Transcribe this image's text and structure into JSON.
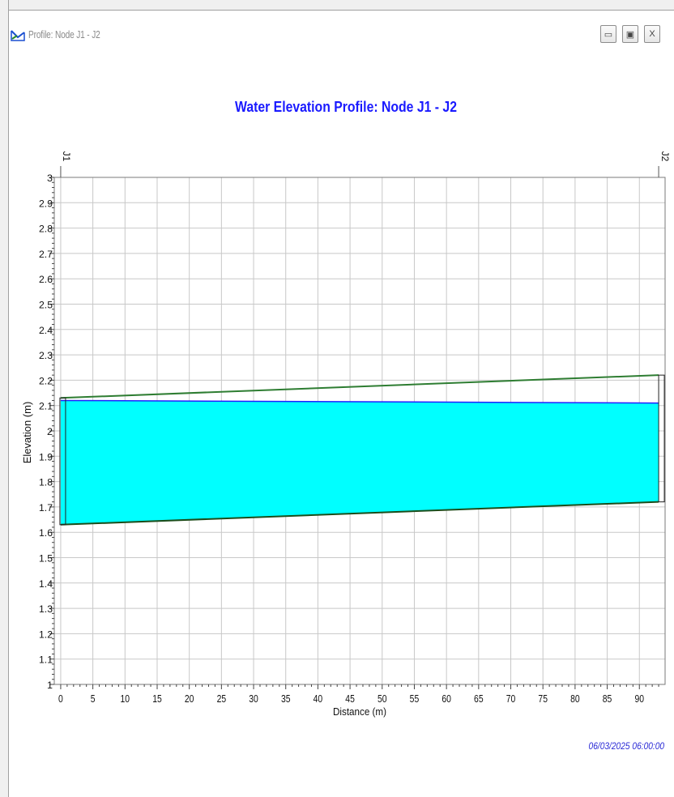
{
  "window": {
    "title": "Profile: Node J1 - J2",
    "buttons": {
      "minimize": "▭",
      "restore": "▣",
      "close": "X"
    }
  },
  "timestamp": "06/03/2025 06:00:00",
  "chart_data": {
    "type": "area",
    "title": "Water Elevation Profile: Node J1 - J2",
    "xlabel": "Distance (m)",
    "ylabel": "Elevation (m)",
    "xlim": [
      -1,
      94
    ],
    "ylim": [
      1,
      3
    ],
    "x_ticks": [
      0,
      5,
      10,
      15,
      20,
      25,
      30,
      35,
      40,
      45,
      50,
      55,
      60,
      65,
      70,
      75,
      80,
      85,
      90
    ],
    "y_ticks": [
      1,
      1.1,
      1.2,
      1.3,
      1.4,
      1.5,
      1.6,
      1.7,
      1.8,
      1.9,
      2,
      2.1,
      2.2,
      2.3,
      2.4,
      2.5,
      2.6,
      2.7,
      2.8,
      2.9,
      3
    ],
    "grid": true,
    "nodes": [
      {
        "name": "J1",
        "x": 0
      },
      {
        "name": "J2",
        "x": 93
      }
    ],
    "conduit": {
      "x": [
        0,
        93
      ],
      "invert": [
        1.63,
        1.72
      ],
      "crown": [
        2.13,
        2.22
      ]
    },
    "water_surface": {
      "x": [
        0,
        93
      ],
      "elevation": [
        2.12,
        2.11
      ]
    },
    "colors": {
      "water_fill": "#00ffff",
      "water_line": "#2020ff",
      "conduit": "#2e7d32",
      "title": "#1a1aff",
      "grid": "#c8c8c8"
    }
  }
}
